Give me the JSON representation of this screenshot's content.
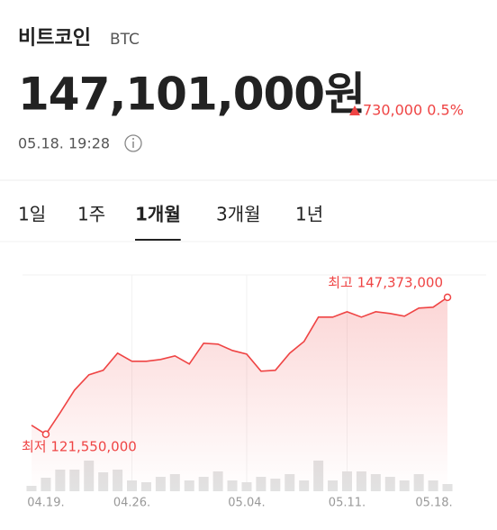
{
  "header": {
    "name": "비트코인",
    "symbol": "BTC",
    "price": "147,101,000원",
    "change": "730,000 0.5%",
    "timestamp": "05.18. 19:28"
  },
  "tabs": [
    "1일",
    "1주",
    "1개월",
    "3개월",
    "1년"
  ],
  "active_tab": 2,
  "chart_data": {
    "type": "line",
    "categories": [
      null,
      "04.19.",
      null,
      null,
      null,
      null,
      null,
      "04.26.",
      null,
      null,
      null,
      null,
      null,
      null,
      null,
      "05.04.",
      null,
      null,
      null,
      null,
      null,
      null,
      "05.11.",
      null,
      null,
      null,
      null,
      null,
      null,
      "05.18."
    ],
    "series": [
      {
        "color": "#ef4444",
        "values": [
          123250000,
          121550000,
          125630000,
          129880000,
          132760000,
          133610000,
          136840000,
          135310000,
          135310000,
          135650000,
          136330000,
          134800000,
          138710000,
          138540000,
          137350000,
          136670000,
          133440000,
          133610000,
          136840000,
          139050000,
          143640000,
          143640000,
          144660000,
          143640000,
          144660000,
          144320000,
          143810000,
          145340000,
          145510000,
          147373000
        ]
      },
      {
        "type": "bar",
        "axis": "y2",
        "color": "#e2e2e2",
        "values": [
          6,
          15,
          24,
          24,
          34,
          21,
          24,
          12,
          10,
          16,
          19,
          12,
          16,
          22,
          12,
          10,
          16,
          14,
          19,
          12,
          34,
          12,
          22,
          22,
          19,
          16,
          12,
          19,
          12,
          8
        ]
      }
    ],
    "ylim": [
      110800000,
      151600000
    ],
    "y2lim": [
      0,
      40
    ],
    "annotations": {
      "high": "최고 147,373,000",
      "low": "최저 121,550,000"
    },
    "grid": true
  }
}
